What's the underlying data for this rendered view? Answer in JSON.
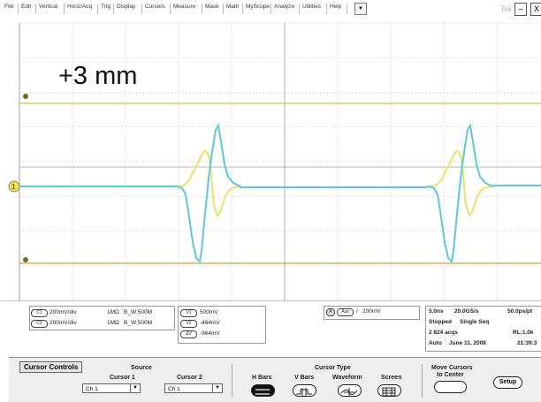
{
  "menu": {
    "items": [
      "File",
      "Edit",
      "Vertical",
      "Horiz/Acq",
      "Trig",
      "Display",
      "Cursors",
      "Measure",
      "Mask",
      "Math",
      "MyScope",
      "Analyze",
      "Utilities",
      "Help"
    ],
    "dropdown_glyph": "▼",
    "brand": "Tek",
    "minimize_glyph": "–",
    "close_glyph": "X"
  },
  "overlay": {
    "label": "+3 mm"
  },
  "colors": {
    "ch1": "#e8e36a",
    "ch2": "#5cc9d6",
    "grid": "#9c9c9c",
    "cursor_line": "#d8c33a"
  },
  "channels": [
    {
      "badge": "C1",
      "scale": "200mV/div",
      "impedance": "1MΩ",
      "bw": "B_W:500M"
    },
    {
      "badge": "C2",
      "scale": "200mV/div",
      "impedance": "1MΩ",
      "bw": "B_W:500M"
    }
  ],
  "cursor_readouts": [
    {
      "badge": "V1",
      "value": "500mV"
    },
    {
      "badge": "V2",
      "value": "-464mV"
    },
    {
      "badge": "ΔV",
      "value": "-964mV"
    }
  ],
  "trigger": {
    "mode": "A",
    "source": "Aux",
    "slope": "/",
    "level": "200mV"
  },
  "acquisition": {
    "timebase": "5.0ns",
    "sample_rate": "20.0GS/s",
    "pts": "50.0ps/pt",
    "state": "Stopped",
    "seq": "Single Seq",
    "acqs": "2 824 acqs",
    "rl": "RL:1.0k",
    "auto": "Auto",
    "date": "June 11, 2008",
    "time": "21:39:3"
  },
  "cursor_panel": {
    "title": "Cursor Controls",
    "source_label": "Source",
    "cursor1_label": "Cursor 1",
    "cursor2_label": "Cursor 2",
    "cursor1_value": "Ch 1",
    "cursor2_value": "Ch 1",
    "cursor_type_label": "Cursor Type",
    "type_hbars": "H Bars",
    "type_vbars": "V Bars",
    "type_waveform": "Waveform",
    "type_screen": "Screen",
    "move_label_1": "Move Cursors",
    "move_label_2": "to Center",
    "setup_label": "Setup"
  }
}
